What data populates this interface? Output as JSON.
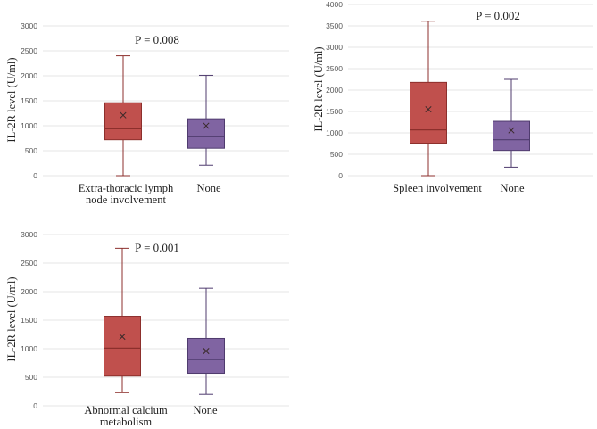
{
  "chart_data": [
    {
      "type": "box",
      "title": "",
      "ylabel": "IL-2R level (U/ml)",
      "annotation": "P = 0.008",
      "ylim": [
        0,
        3000
      ],
      "yticks": [
        0,
        500,
        1000,
        1500,
        2000,
        2500,
        3000
      ],
      "series": [
        {
          "name": "Extra-thoracic lymph node involvement",
          "label_lines": [
            "Extra-thoracic lymph",
            "node involvement"
          ],
          "min": 0,
          "q1": 720,
          "median": 940,
          "q3": 1460,
          "max": 2400,
          "mean": 1210,
          "color": "#c0504d",
          "stroke": "#8c2f2c"
        },
        {
          "name": "None",
          "label_lines": [
            "None"
          ],
          "min": 210,
          "q1": 550,
          "median": 780,
          "q3": 1140,
          "max": 2010,
          "mean": 1000,
          "color": "#8064a2",
          "stroke": "#4f3b6e"
        }
      ]
    },
    {
      "type": "box",
      "title": "",
      "ylabel": "IL-2R level (U/ml)",
      "annotation": "P = 0.002",
      "ylim": [
        0,
        4000
      ],
      "yticks": [
        0,
        500,
        1000,
        1500,
        2000,
        2500,
        3000,
        3500,
        4000
      ],
      "series": [
        {
          "name": "Spleen involvement",
          "label_lines": [
            "Spleen involvement"
          ],
          "min": 0,
          "q1": 760,
          "median": 1070,
          "q3": 2180,
          "max": 3610,
          "mean": 1550,
          "color": "#c0504d",
          "stroke": "#8c2f2c"
        },
        {
          "name": "None",
          "label_lines": [
            "None"
          ],
          "min": 200,
          "q1": 590,
          "median": 840,
          "q3": 1270,
          "max": 2250,
          "mean": 1060,
          "color": "#8064a2",
          "stroke": "#4f3b6e"
        }
      ]
    },
    {
      "type": "box",
      "title": "",
      "ylabel": "IL-2R level (U/ml)",
      "annotation": "P = 0.001",
      "ylim": [
        0,
        3000
      ],
      "yticks": [
        0,
        500,
        1000,
        1500,
        2000,
        2500,
        3000
      ],
      "series": [
        {
          "name": "Abnormal calcium metabolism",
          "label_lines": [
            "Abnormal calcium",
            "metabolism"
          ],
          "min": 230,
          "q1": 520,
          "median": 1010,
          "q3": 1570,
          "max": 2760,
          "mean": 1210,
          "color": "#c0504d",
          "stroke": "#8c2f2c"
        },
        {
          "name": "None",
          "label_lines": [
            "None"
          ],
          "min": 200,
          "q1": 570,
          "median": 810,
          "q3": 1180,
          "max": 2060,
          "mean": 960,
          "color": "#8064a2",
          "stroke": "#4f3b6e"
        }
      ]
    }
  ]
}
